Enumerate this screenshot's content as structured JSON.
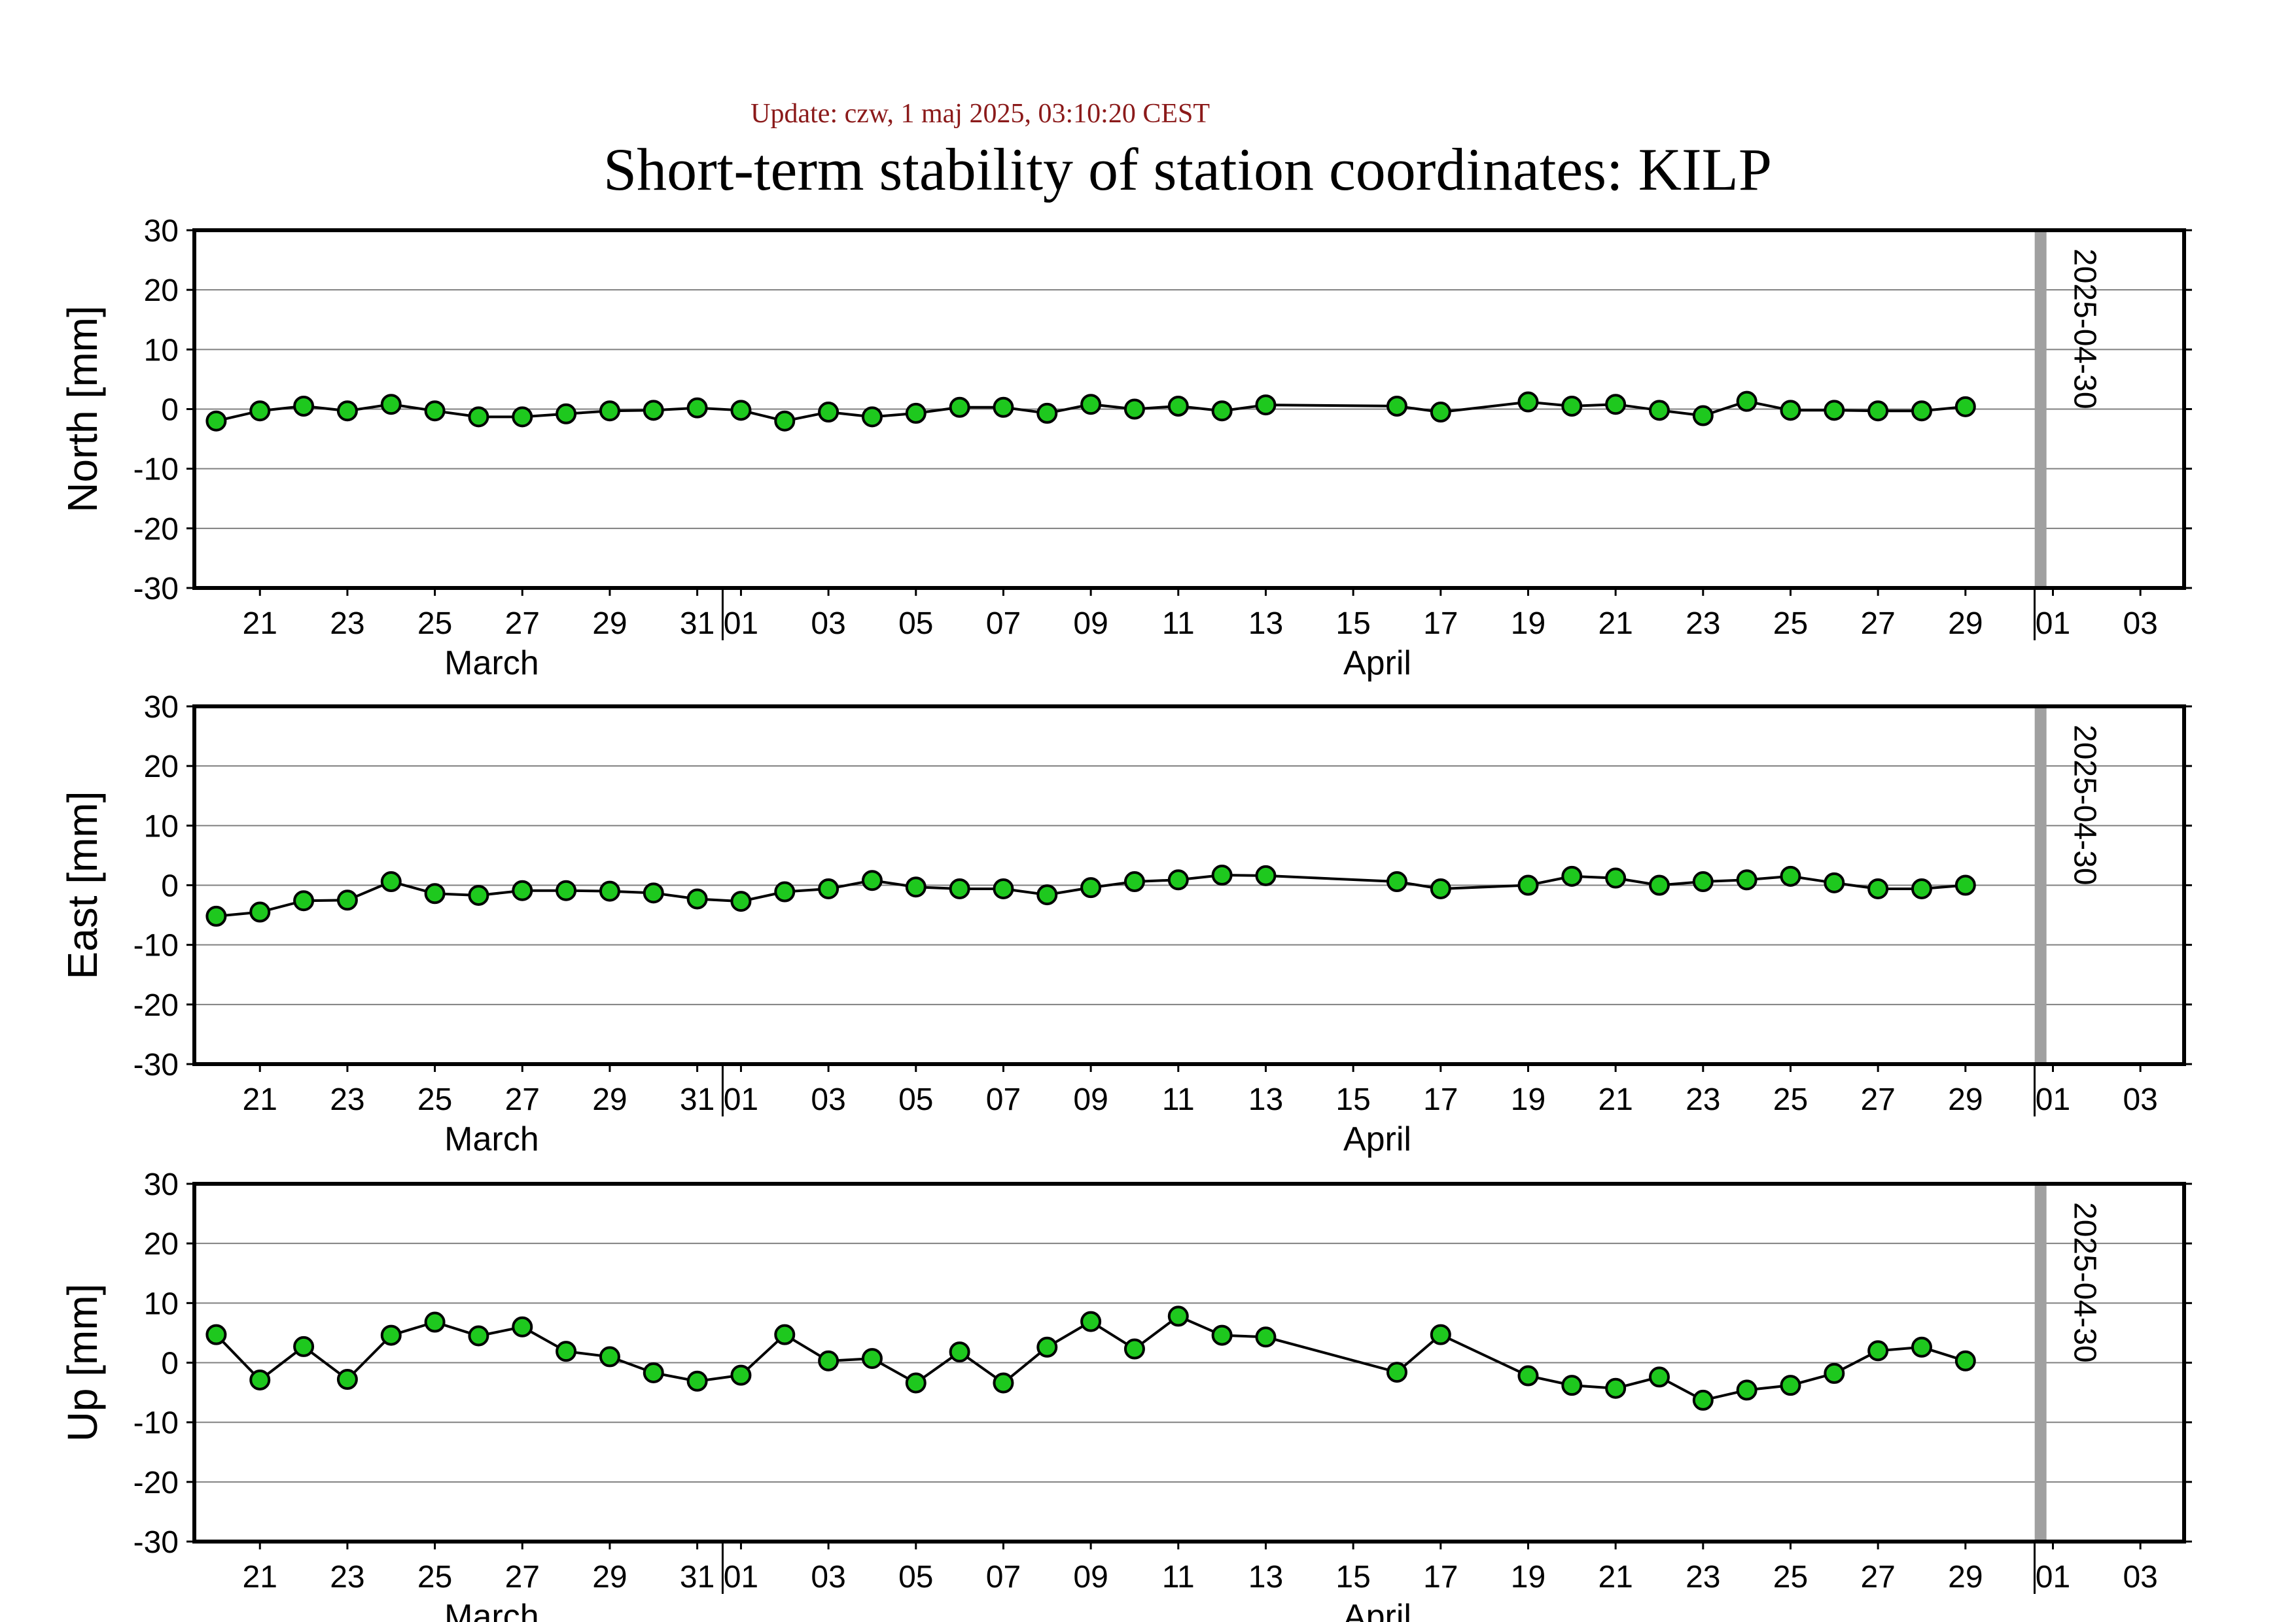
{
  "header": {
    "update": "Update: czw, 1 maj 2025, 03:10:20 CEST",
    "title": "Short-term stability of station coordinates: KILP"
  },
  "chart_data": [
    {
      "type": "line",
      "ylabel": "North [mm]",
      "ylim": [
        -30,
        30
      ],
      "yticks": [
        30,
        20,
        10,
        0,
        -10,
        -20,
        -30
      ],
      "marker": "2025-04-30",
      "x": [
        "2025-03-20",
        "2025-03-21",
        "2025-03-22",
        "2025-03-23",
        "2025-03-24",
        "2025-03-25",
        "2025-03-26",
        "2025-03-27",
        "2025-03-28",
        "2025-03-29",
        "2025-03-30",
        "2025-03-31",
        "2025-04-01",
        "2025-04-02",
        "2025-04-03",
        "2025-04-04",
        "2025-04-05",
        "2025-04-06",
        "2025-04-07",
        "2025-04-08",
        "2025-04-09",
        "2025-04-10",
        "2025-04-11",
        "2025-04-12",
        "2025-04-13",
        "2025-04-16",
        "2025-04-17",
        "2025-04-19",
        "2025-04-20",
        "2025-04-21",
        "2025-04-22",
        "2025-04-23",
        "2025-04-24",
        "2025-04-25",
        "2025-04-26",
        "2025-04-27",
        "2025-04-28",
        "2025-04-29"
      ],
      "values": [
        -2,
        -0.3,
        0.5,
        -0.3,
        0.8,
        -0.3,
        -1.3,
        -1.3,
        -0.8,
        -0.3,
        -0.2,
        0.2,
        -0.2,
        -2,
        -0.5,
        -1.3,
        -0.7,
        0.3,
        0.3,
        -0.7,
        0.8,
        0,
        0.5,
        -0.3,
        0.7,
        0.5,
        -0.5,
        1.2,
        0.5,
        0.8,
        -0.2,
        -1.1,
        1.3,
        -0.2,
        -0.2,
        -0.3,
        -0.3,
        0.4
      ]
    },
    {
      "type": "line",
      "ylabel": "East [mm]",
      "ylim": [
        -30,
        30
      ],
      "yticks": [
        30,
        20,
        10,
        0,
        -10,
        -20,
        -30
      ],
      "marker": "2025-04-30",
      "x": [
        "2025-03-20",
        "2025-03-21",
        "2025-03-22",
        "2025-03-23",
        "2025-03-24",
        "2025-03-25",
        "2025-03-26",
        "2025-03-27",
        "2025-03-28",
        "2025-03-29",
        "2025-03-30",
        "2025-03-31",
        "2025-04-01",
        "2025-04-02",
        "2025-04-03",
        "2025-04-04",
        "2025-04-05",
        "2025-04-06",
        "2025-04-07",
        "2025-04-08",
        "2025-04-09",
        "2025-04-10",
        "2025-04-11",
        "2025-04-12",
        "2025-04-13",
        "2025-04-16",
        "2025-04-17",
        "2025-04-19",
        "2025-04-20",
        "2025-04-21",
        "2025-04-22",
        "2025-04-23",
        "2025-04-24",
        "2025-04-25",
        "2025-04-26",
        "2025-04-27",
        "2025-04-28",
        "2025-04-29"
      ],
      "values": [
        -5.2,
        -4.5,
        -2.6,
        -2.5,
        0.6,
        -1.4,
        -1.7,
        -0.9,
        -0.9,
        -1,
        -1.3,
        -2.3,
        -2.7,
        -1.1,
        -0.6,
        0.8,
        -0.3,
        -0.6,
        -0.6,
        -1.6,
        -0.4,
        0.6,
        0.9,
        1.7,
        1.6,
        0.6,
        -0.6,
        0,
        1.5,
        1.2,
        0,
        0.6,
        0.9,
        1.5,
        0.4,
        -0.6,
        -0.6,
        0
      ]
    },
    {
      "type": "line",
      "ylabel": "Up [mm]",
      "ylim": [
        -30,
        30
      ],
      "yticks": [
        30,
        20,
        10,
        0,
        -10,
        -20,
        -30
      ],
      "marker": "2025-04-30",
      "x": [
        "2025-03-20",
        "2025-03-21",
        "2025-03-22",
        "2025-03-23",
        "2025-03-24",
        "2025-03-25",
        "2025-03-26",
        "2025-03-27",
        "2025-03-28",
        "2025-03-29",
        "2025-03-30",
        "2025-03-31",
        "2025-04-01",
        "2025-04-02",
        "2025-04-03",
        "2025-04-04",
        "2025-04-05",
        "2025-04-06",
        "2025-04-07",
        "2025-04-08",
        "2025-04-09",
        "2025-04-10",
        "2025-04-11",
        "2025-04-12",
        "2025-04-13",
        "2025-04-16",
        "2025-04-17",
        "2025-04-19",
        "2025-04-20",
        "2025-04-21",
        "2025-04-22",
        "2025-04-23",
        "2025-04-24",
        "2025-04-25",
        "2025-04-26",
        "2025-04-27",
        "2025-04-28",
        "2025-04-29"
      ],
      "values": [
        4.7,
        -2.9,
        2.7,
        -2.8,
        4.6,
        6.8,
        4.5,
        6,
        1.9,
        1,
        -1.7,
        -3.1,
        -2.1,
        4.7,
        0.3,
        0.7,
        -3.4,
        1.8,
        -3.4,
        2.6,
        6.9,
        2.3,
        7.8,
        4.6,
        4.3,
        -1.6,
        4.7,
        -2.2,
        -3.8,
        -4.3,
        -2.4,
        -6.3,
        -4.6,
        -3.8,
        -1.8,
        2,
        2.6,
        0.3
      ]
    }
  ],
  "xaxis": {
    "tick_labels": [
      "21",
      "23",
      "25",
      "27",
      "29",
      "31",
      "01",
      "03",
      "05",
      "07",
      "09",
      "11",
      "13",
      "15",
      "17",
      "19",
      "21",
      "23",
      "25",
      "27",
      "29",
      "01",
      "03"
    ],
    "tick_dates": [
      "2025-03-21",
      "2025-03-23",
      "2025-03-25",
      "2025-03-27",
      "2025-03-29",
      "2025-03-31",
      "2025-04-01",
      "2025-04-03",
      "2025-04-05",
      "2025-04-07",
      "2025-04-09",
      "2025-04-11",
      "2025-04-13",
      "2025-04-15",
      "2025-04-17",
      "2025-04-19",
      "2025-04-21",
      "2025-04-23",
      "2025-04-25",
      "2025-04-27",
      "2025-04-29",
      "2025-05-01",
      "2025-05-03"
    ],
    "month_labels": [
      "March",
      "April"
    ],
    "month_boundaries": [
      "2025-04-01",
      "2025-05-01"
    ]
  },
  "colors": {
    "marker_fill": "#1ec81e",
    "line": "#000000",
    "grid": "#808080",
    "marker_line": "#a0a0a0",
    "update_text": "#8b1a1a"
  }
}
